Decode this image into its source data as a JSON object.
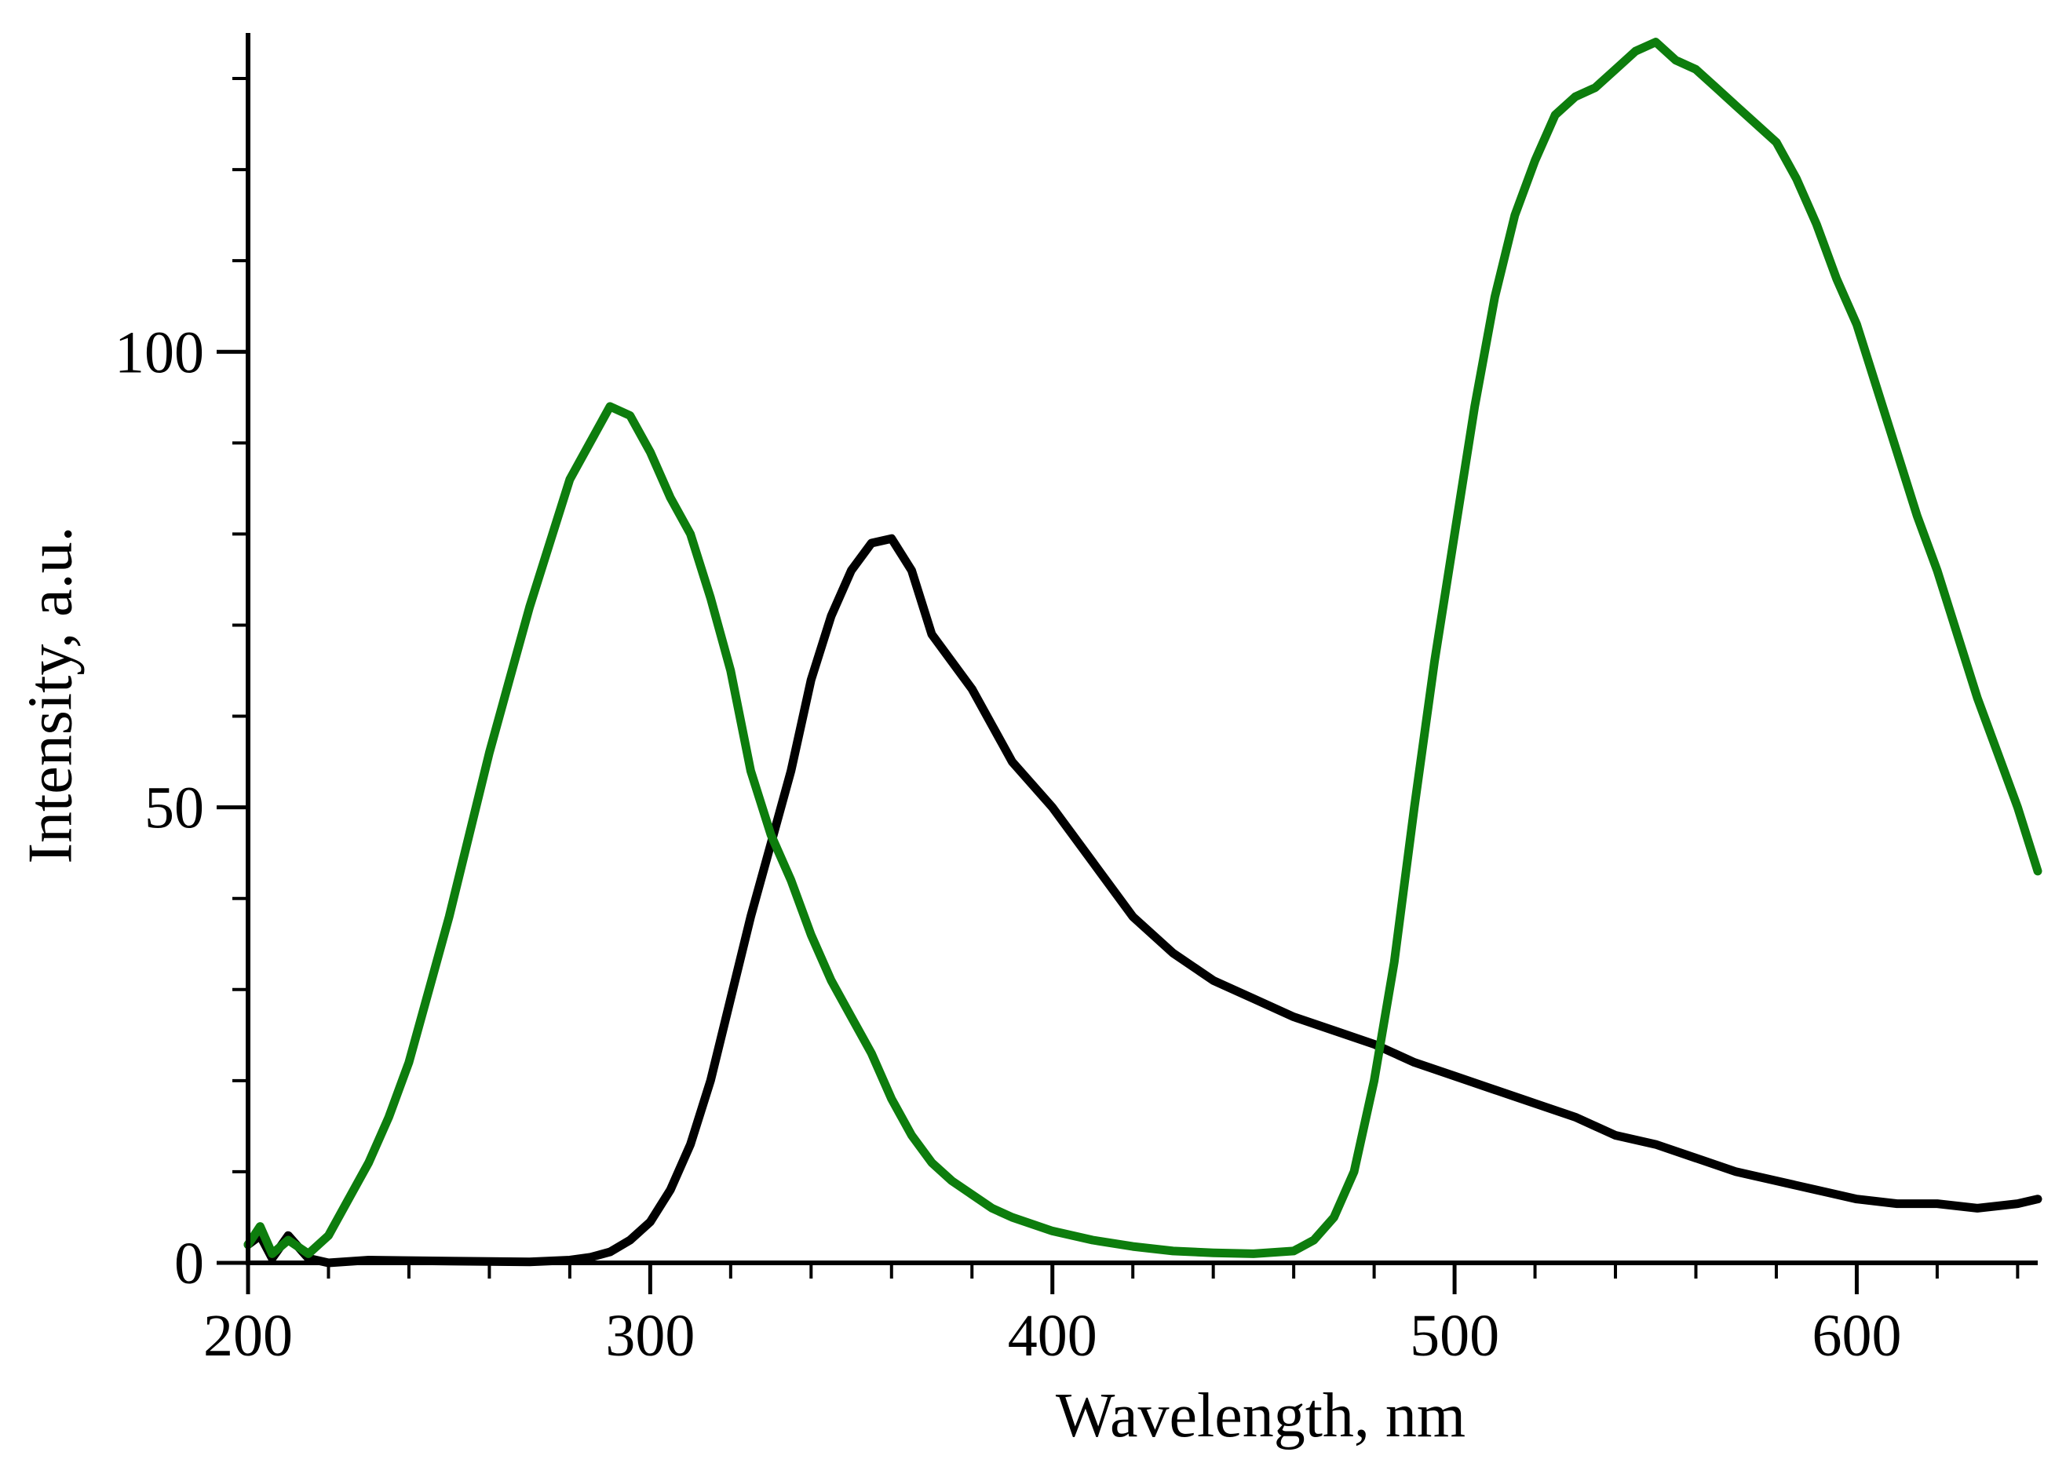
{
  "chart_data": {
    "type": "line",
    "title": "",
    "xlabel": "Wavelength, nm",
    "ylabel": "Intensity, a.u.",
    "xlim": [
      200,
      645
    ],
    "ylim": [
      0,
      135
    ],
    "x_major_ticks": [
      200,
      300,
      400,
      500,
      600
    ],
    "x_tick_labels": [
      "200",
      "300",
      "400",
      "500",
      "600"
    ],
    "x_minor_step": 20,
    "y_major_ticks": [
      0,
      50,
      100
    ],
    "y_tick_labels": [
      "0",
      "50",
      "100"
    ],
    "y_minor_step": 10,
    "grid": false,
    "legend": "none",
    "series": [
      {
        "name": "black curve",
        "color": "#000000",
        "x": [
          200,
          203,
          206,
          210,
          215,
          220,
          230,
          250,
          270,
          280,
          285,
          290,
          295,
          300,
          305,
          310,
          315,
          320,
          325,
          330,
          335,
          340,
          345,
          350,
          355,
          360,
          365,
          370,
          380,
          390,
          400,
          410,
          420,
          430,
          440,
          450,
          460,
          470,
          480,
          490,
          500,
          510,
          520,
          530,
          540,
          550,
          560,
          570,
          580,
          590,
          600,
          610,
          620,
          630,
          640,
          645
        ],
        "y": [
          2,
          3,
          0.5,
          3,
          0.5,
          0,
          0.3,
          0.2,
          0.1,
          0.3,
          0.6,
          1.2,
          2.5,
          4.5,
          8,
          13,
          20,
          29,
          38,
          46,
          54,
          64,
          71,
          76,
          79,
          79.5,
          76,
          69,
          63,
          55,
          50,
          44,
          38,
          34,
          31,
          29,
          27,
          25.5,
          24,
          22,
          20.5,
          19,
          17.5,
          16,
          14,
          13,
          11.5,
          10,
          9,
          8,
          7,
          6.5,
          6.5,
          6,
          6.5,
          7
        ]
      },
      {
        "name": "green curve",
        "color": "#0d7d0d",
        "x": [
          200,
          203,
          206,
          210,
          215,
          220,
          225,
          230,
          235,
          240,
          245,
          250,
          255,
          260,
          265,
          270,
          275,
          280,
          285,
          290,
          295,
          300,
          305,
          310,
          315,
          320,
          325,
          330,
          335,
          340,
          345,
          350,
          355,
          360,
          365,
          370,
          375,
          380,
          385,
          390,
          400,
          410,
          420,
          430,
          440,
          450,
          460,
          465,
          470,
          475,
          480,
          485,
          490,
          495,
          500,
          505,
          510,
          515,
          520,
          525,
          530,
          535,
          540,
          545,
          550,
          555,
          560,
          565,
          570,
          575,
          580,
          585,
          590,
          595,
          600,
          605,
          610,
          615,
          620,
          625,
          630,
          635,
          640,
          645
        ],
        "y": [
          2,
          4,
          1,
          2.5,
          1,
          3,
          7,
          11,
          16,
          22,
          30,
          38,
          47,
          56,
          64,
          72,
          79,
          86,
          90,
          94,
          93,
          89,
          84,
          80,
          73,
          65,
          54,
          47,
          42,
          36,
          31,
          27,
          23,
          18,
          14,
          11,
          9,
          7.5,
          6,
          5,
          3.5,
          2.5,
          1.8,
          1.3,
          1.1,
          1,
          1.3,
          2.5,
          5,
          10,
          20,
          33,
          50,
          66,
          80,
          94,
          106,
          115,
          121,
          126,
          128,
          129,
          131,
          133,
          134,
          132,
          131,
          129,
          127,
          125,
          123,
          119,
          114,
          108,
          103,
          96,
          89,
          82,
          76,
          69,
          62,
          56,
          50,
          43
        ]
      }
    ]
  }
}
